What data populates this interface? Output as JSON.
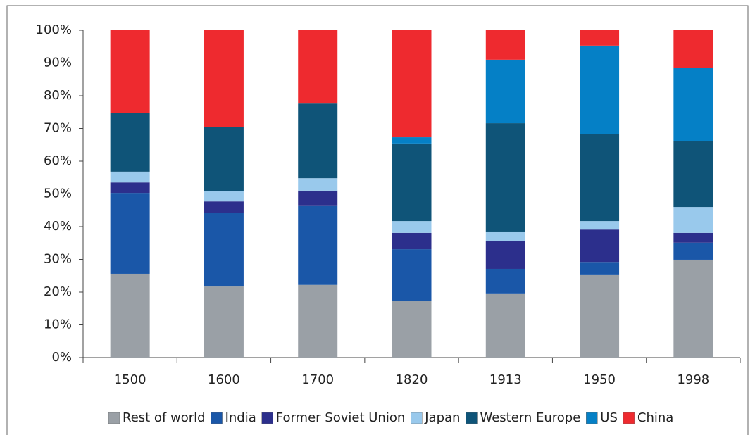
{
  "chart_data": {
    "type": "stacked_bar",
    "categories": [
      "1500",
      "1600",
      "1700",
      "1820",
      "1913",
      "1950",
      "1998"
    ],
    "series": [
      {
        "name": "Rest of world",
        "color": "#9aa0a6",
        "values": [
          25.6,
          21.7,
          22.2,
          17.2,
          19.6,
          25.4,
          29.9
        ]
      },
      {
        "name": "India",
        "color": "#1a57a8",
        "values": [
          24.7,
          22.6,
          24.3,
          15.9,
          7.5,
          3.8,
          5.2
        ]
      },
      {
        "name": "Former Soviet Union",
        "color": "#2c2f8c",
        "values": [
          3.2,
          3.4,
          4.5,
          5.0,
          8.6,
          9.9,
          3.0
        ]
      },
      {
        "name": "Japan",
        "color": "#99c9ec",
        "values": [
          3.3,
          3.1,
          3.8,
          3.6,
          2.8,
          2.6,
          7.9
        ]
      },
      {
        "name": "Western Europe",
        "color": "#0f5478",
        "values": [
          18.0,
          19.7,
          22.8,
          23.7,
          33.1,
          26.5,
          20.2
        ]
      },
      {
        "name": "US",
        "color": "#0580c6",
        "values": [
          0,
          0,
          0,
          1.9,
          19.4,
          27.1,
          22.2
        ]
      },
      {
        "name": "China",
        "color": "#ee2a2f",
        "values": [
          25.2,
          29.5,
          22.4,
          32.7,
          9.0,
          4.7,
          11.6
        ]
      }
    ],
    "ylim": [
      0,
      100
    ],
    "yticks": [
      {
        "value": 0,
        "label": "0%"
      },
      {
        "value": 10,
        "label": "10%"
      },
      {
        "value": 20,
        "label": "20%"
      },
      {
        "value": 30,
        "label": "30%"
      },
      {
        "value": 40,
        "label": "40%"
      },
      {
        "value": 50,
        "label": "50%"
      },
      {
        "value": 60,
        "label": "60%"
      },
      {
        "value": 70,
        "label": "70%"
      },
      {
        "value": 80,
        "label": "80%"
      },
      {
        "value": 90,
        "label": "90%"
      },
      {
        "value": 100,
        "label": "100%"
      }
    ],
    "legend": "bottom"
  }
}
